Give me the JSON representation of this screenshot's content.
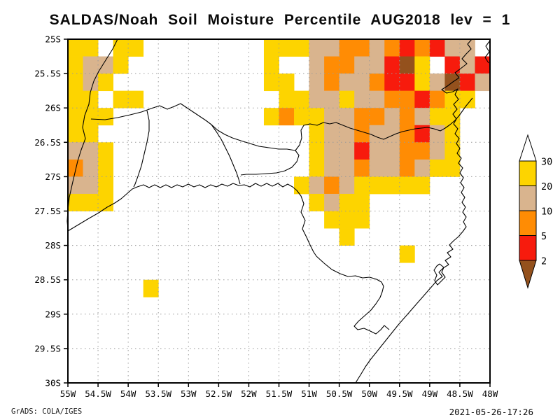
{
  "title": "SALDAS/Noah Soil Moisture Percentile AUG2018 lev = 1",
  "footer": {
    "left": "GrADS: COLA/IGES",
    "right": "2021-05-26-17:26"
  },
  "chart_data": {
    "type": "heatmap",
    "title": "SALDAS/Noah Soil Moisture Percentile AUG2018 lev = 1",
    "variable": "Soil Moisture Percentile",
    "time": "AUG2018",
    "level": "1",
    "lon_range_deg_w": [
      55,
      48
    ],
    "lat_range_deg_s": [
      25,
      30
    ],
    "x_ticks": [
      "55W",
      "54.5W",
      "54W",
      "53.5W",
      "53W",
      "52.5W",
      "52W",
      "51.5W",
      "51W",
      "50.5W",
      "50W",
      "49.5W",
      "49W",
      "48.5W",
      "48W"
    ],
    "y_ticks": [
      "25S",
      "25.5S",
      "26S",
      "26.5S",
      "27S",
      "27.5S",
      "28S",
      "28.5S",
      "29S",
      "29.5S",
      "30S"
    ],
    "grid_lines": {
      "interval_deg": 0.5,
      "style": "dotted",
      "color": "#9a9a9a"
    },
    "legend": {
      "position": "right",
      "labels": [
        "30",
        "20",
        "10",
        "5",
        "2"
      ],
      "levels": [
        30,
        20,
        10,
        5,
        2
      ],
      "bar_colors": [
        "#fdd400",
        "#d9b48e",
        "#ff8c04",
        "#f71b0d"
      ],
      "above_color": "#ffffff",
      "below_color": "#94511d",
      "bin_colors": {
        "y": "#fdd400",
        "t": "#d9b48e",
        "o": "#ff8c04",
        "r": "#f71b0d",
        "b": "#94511d"
      },
      "bin_meaning": {
        "y": "percentile 20-30",
        "t": "percentile 10-20",
        "o": "percentile 5-10",
        "r": "percentile 2-5",
        "b": "percentile below 2",
        "blank": "percentile above 30 (unshaded)"
      }
    },
    "grid": {
      "cols": 28,
      "rows": 20,
      "cell_deg": 0.25,
      "origin": "top-left = 25S, 55W",
      "cell_runs": [
        [
          [
            "y",
            0,
            2
          ],
          [
            "y",
            3,
            2
          ],
          [
            "y",
            13,
            3
          ],
          [
            "t",
            16,
            2
          ],
          [
            "o",
            18,
            2
          ],
          [
            "t",
            20,
            1
          ],
          [
            "o",
            21,
            1
          ],
          [
            "r",
            22,
            1
          ],
          [
            "o",
            23,
            1
          ],
          [
            "r",
            24,
            1
          ],
          [
            "t",
            25,
            2
          ]
        ],
        [
          [
            "y",
            0,
            1
          ],
          [
            "t",
            1,
            2
          ],
          [
            "y",
            3,
            1
          ],
          [
            "y",
            13,
            1
          ],
          [
            "t",
            16,
            1
          ],
          [
            "o",
            17,
            2
          ],
          [
            "t",
            19,
            2
          ],
          [
            "r",
            21,
            1
          ],
          [
            "b",
            22,
            1
          ],
          [
            "y",
            23,
            1
          ],
          [
            "r",
            25,
            1
          ],
          [
            "t",
            26,
            1
          ],
          [
            "r",
            27,
            1
          ]
        ],
        [
          [
            "y",
            0,
            1
          ],
          [
            "t",
            1,
            1
          ],
          [
            "y",
            2,
            1
          ],
          [
            "y",
            13,
            2
          ],
          [
            "t",
            16,
            1
          ],
          [
            "o",
            17,
            1
          ],
          [
            "t",
            18,
            2
          ],
          [
            "o",
            20,
            1
          ],
          [
            "r",
            21,
            2
          ],
          [
            "y",
            23,
            1
          ],
          [
            "t",
            24,
            1
          ],
          [
            "b",
            25,
            1
          ],
          [
            "r",
            26,
            1
          ],
          [
            "t",
            27,
            1
          ]
        ],
        [
          [
            "y",
            0,
            2
          ],
          [
            "y",
            3,
            2
          ],
          [
            "y",
            14,
            2
          ],
          [
            "t",
            16,
            2
          ],
          [
            "y",
            18,
            1
          ],
          [
            "t",
            19,
            2
          ],
          [
            "o",
            21,
            2
          ],
          [
            "r",
            23,
            1
          ],
          [
            "o",
            24,
            1
          ],
          [
            "y",
            25,
            2
          ]
        ],
        [
          [
            "y",
            0,
            3
          ],
          [
            "y",
            13,
            1
          ],
          [
            "o",
            14,
            1
          ],
          [
            "y",
            15,
            2
          ],
          [
            "t",
            17,
            2
          ],
          [
            "o",
            19,
            2
          ],
          [
            "t",
            21,
            1
          ],
          [
            "o",
            22,
            1
          ],
          [
            "t",
            23,
            1
          ],
          [
            "y",
            24,
            2
          ]
        ],
        [
          [
            "y",
            0,
            2
          ],
          [
            "y",
            16,
            1
          ],
          [
            "t",
            17,
            2
          ],
          [
            "o",
            19,
            1
          ],
          [
            "t",
            20,
            2
          ],
          [
            "o",
            22,
            1
          ],
          [
            "r",
            23,
            1
          ],
          [
            "t",
            24,
            1
          ],
          [
            "y",
            25,
            1
          ]
        ],
        [
          [
            "t",
            0,
            2
          ],
          [
            "y",
            2,
            1
          ],
          [
            "y",
            16,
            1
          ],
          [
            "t",
            17,
            2
          ],
          [
            "r",
            19,
            1
          ],
          [
            "t",
            20,
            2
          ],
          [
            "o",
            22,
            2
          ],
          [
            "t",
            24,
            1
          ],
          [
            "y",
            25,
            1
          ]
        ],
        [
          [
            "o",
            0,
            1
          ],
          [
            "t",
            1,
            1
          ],
          [
            "y",
            2,
            1
          ],
          [
            "y",
            16,
            1
          ],
          [
            "t",
            17,
            2
          ],
          [
            "o",
            19,
            1
          ],
          [
            "t",
            20,
            2
          ],
          [
            "o",
            22,
            1
          ],
          [
            "t",
            23,
            1
          ],
          [
            "y",
            24,
            2
          ]
        ],
        [
          [
            "t",
            0,
            2
          ],
          [
            "y",
            2,
            1
          ],
          [
            "y",
            15,
            1
          ],
          [
            "t",
            16,
            1
          ],
          [
            "o",
            17,
            1
          ],
          [
            "t",
            18,
            1
          ],
          [
            "y",
            19,
            5
          ]
        ],
        [
          [
            "y",
            0,
            3
          ],
          [
            "y",
            16,
            1
          ],
          [
            "t",
            17,
            1
          ],
          [
            "y",
            18,
            2
          ]
        ],
        [
          [
            "y",
            17,
            3
          ]
        ],
        [
          [
            "y",
            18,
            1
          ]
        ],
        [
          [
            "y",
            22,
            1
          ]
        ],
        [],
        [
          [
            "y",
            5,
            1
          ]
        ],
        [],
        [],
        [],
        [],
        []
      ]
    }
  }
}
